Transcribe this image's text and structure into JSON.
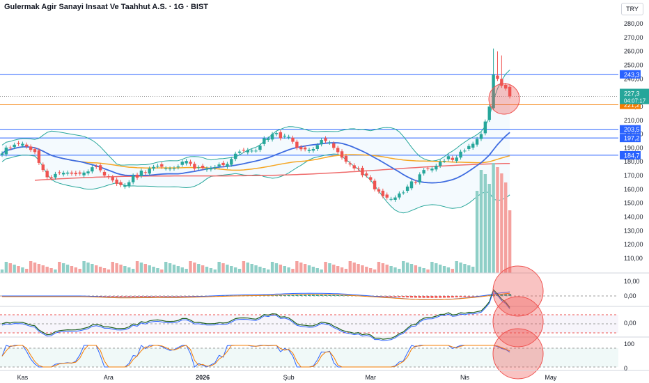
{
  "header": {
    "title": "Gulermak Agir Sanayi Insaat Ve Taahhut A.S. · 1G · BIST",
    "currency": "TRY"
  },
  "colors": {
    "up": "#26a69a",
    "down": "#ef5350",
    "vol_up": "#8fcfc7",
    "vol_down": "#f4a19e",
    "hline": "#2962ff",
    "orange": "#f57c00",
    "sma_blue": "#3d6be0",
    "sma_orange": "#f5a623",
    "sma_red": "#ef6a6a",
    "bb": "#26a69a",
    "axis_text": "#131722",
    "grid_dot": "#9e9e9e"
  },
  "chart_data": {
    "type": "candlestick",
    "title": "Gulermak Agir Sanayi Insaat Ve Taahhut A.S. · 1G · BIST",
    "price_axis": {
      "min": 110,
      "max": 280,
      "ticks": [
        "280,00",
        "270,00",
        "260,00",
        "250,00",
        "240,00",
        "230,00",
        "220,00",
        "210,00",
        "200,00",
        "190,00",
        "180,00",
        "170,00",
        "160,00",
        "150,00",
        "140,00",
        "130,00",
        "120,00",
        "110,00"
      ]
    },
    "time_axis": {
      "labels": [
        {
          "label": "Kas",
          "index": 5
        },
        {
          "label": "Ara",
          "index": 26
        },
        {
          "label": "2026",
          "index": 49
        },
        {
          "label": "Şub",
          "index": 70
        },
        {
          "label": "Mar",
          "index": 90
        },
        {
          "label": "Nis",
          "index": 113
        },
        {
          "label": "May",
          "index": 134
        }
      ],
      "bars_total": 140
    },
    "horizontal_levels": [
      {
        "value": 243.3,
        "label": "243,3",
        "color": "#2962ff"
      },
      {
        "value": 221.2,
        "label": "221,2",
        "color": "#f57c00"
      },
      {
        "value": 203.5,
        "label": "203,5",
        "color": "#2962ff"
      },
      {
        "value": 197.2,
        "label": "197,2",
        "color": "#2962ff"
      },
      {
        "value": 184.7,
        "label": "184,7",
        "color": "#2962ff"
      }
    ],
    "last_price": {
      "value": 227.3,
      "label": "227,3",
      "countdown": "04:07:17"
    },
    "ohlc_anchors": [
      {
        "i": 0,
        "c": 186
      },
      {
        "i": 2,
        "c": 190
      },
      {
        "i": 5,
        "c": 193
      },
      {
        "i": 8,
        "c": 187
      },
      {
        "i": 10,
        "c": 174
      },
      {
        "i": 12,
        "c": 168
      },
      {
        "i": 15,
        "c": 172
      },
      {
        "i": 18,
        "c": 171
      },
      {
        "i": 22,
        "c": 176
      },
      {
        "i": 25,
        "c": 170
      },
      {
        "i": 28,
        "c": 164
      },
      {
        "i": 30,
        "c": 163
      },
      {
        "i": 32,
        "c": 170
      },
      {
        "i": 35,
        "c": 172
      },
      {
        "i": 38,
        "c": 177
      },
      {
        "i": 41,
        "c": 175
      },
      {
        "i": 44,
        "c": 180
      },
      {
        "i": 47,
        "c": 175
      },
      {
        "i": 50,
        "c": 175
      },
      {
        "i": 53,
        "c": 178
      },
      {
        "i": 56,
        "c": 182
      },
      {
        "i": 59,
        "c": 188
      },
      {
        "i": 62,
        "c": 188
      },
      {
        "i": 64,
        "c": 197
      },
      {
        "i": 66,
        "c": 200
      },
      {
        "i": 68,
        "c": 197
      },
      {
        "i": 70,
        "c": 198
      },
      {
        "i": 72,
        "c": 190
      },
      {
        "i": 74,
        "c": 189
      },
      {
        "i": 77,
        "c": 192
      },
      {
        "i": 79,
        "c": 195
      },
      {
        "i": 81,
        "c": 190
      },
      {
        "i": 83,
        "c": 183
      },
      {
        "i": 85,
        "c": 178
      },
      {
        "i": 87,
        "c": 175
      },
      {
        "i": 89,
        "c": 170
      },
      {
        "i": 91,
        "c": 160
      },
      {
        "i": 93,
        "c": 155
      },
      {
        "i": 95,
        "c": 153
      },
      {
        "i": 97,
        "c": 157
      },
      {
        "i": 99,
        "c": 162
      },
      {
        "i": 101,
        "c": 165
      },
      {
        "i": 103,
        "c": 174
      },
      {
        "i": 105,
        "c": 175
      },
      {
        "i": 107,
        "c": 180
      },
      {
        "i": 109,
        "c": 184
      },
      {
        "i": 111,
        "c": 183
      },
      {
        "i": 113,
        "c": 188
      },
      {
        "i": 115,
        "c": 193
      },
      {
        "i": 117,
        "c": 200
      },
      {
        "i": 119,
        "c": 220
      },
      {
        "i": 120,
        "c": 243
      },
      {
        "i": 121,
        "c": 240
      },
      {
        "i": 122,
        "c": 235
      },
      {
        "i": 123,
        "c": 233
      },
      {
        "i": 124,
        "c": 227.3
      }
    ],
    "special_wicks": [
      {
        "i": 120,
        "high": 262
      },
      {
        "i": 121,
        "high": 260
      },
      {
        "i": 122,
        "high": 257
      }
    ],
    "volume": {
      "baseline_max": 156,
      "spikes": [
        {
          "i": 116,
          "v": 118
        },
        {
          "i": 117,
          "v": 148
        },
        {
          "i": 118,
          "v": 142
        },
        {
          "i": 119,
          "v": 128
        },
        {
          "i": 120,
          "v": 158
        },
        {
          "i": 121,
          "v": 152
        },
        {
          "i": 122,
          "v": 143
        },
        {
          "i": 123,
          "v": 130
        },
        {
          "i": 124,
          "v": 90
        }
      ]
    },
    "macd_axis": {
      "ticks": [
        "10,00",
        "0,00"
      ]
    },
    "rsi_axis": {
      "ticks": [
        "0,00"
      ]
    },
    "stoch_axis": {
      "ticks": [
        "100",
        "0"
      ]
    },
    "series_names": [
      "SMA 20",
      "SMA 50",
      "SMA 100",
      "Bollinger Bands",
      "Volume",
      "MACD",
      "RSI",
      "Stochastic"
    ]
  }
}
